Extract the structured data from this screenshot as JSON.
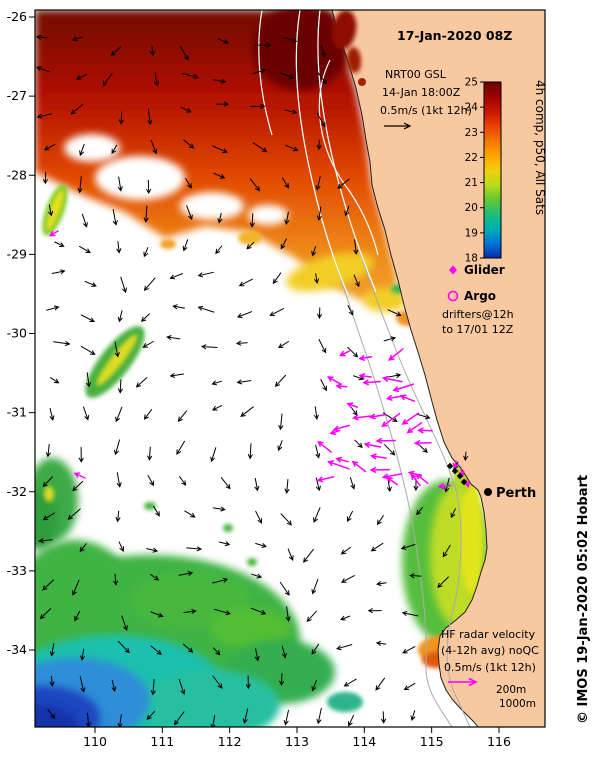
{
  "map": {
    "title": "17-Jan-2020 08Z",
    "product": {
      "name": "NRT00 GSL",
      "valid": "14-Jan 18:00Z",
      "scale": "0.5m/s (1kt 12h)"
    },
    "colorbar": {
      "label": "4h comp, p50, All Sats",
      "ticks": [
        "25",
        "24",
        "23",
        "22",
        "21",
        "20",
        "19",
        "18"
      ],
      "stops": [
        "#6E0000",
        "#9E0400",
        "#C81600",
        "#E84200",
        "#F57600",
        "#FDA400",
        "#F2CE0C",
        "#BCDC1A",
        "#64C832",
        "#1EBE78",
        "#00B0B4",
        "#0076D8",
        "#0A2AAE"
      ]
    },
    "legend": {
      "glider": "Glider",
      "argo": "Argo",
      "drifters1": "drifters@12h",
      "drifters2": "to 17/01 12Z"
    },
    "hf": {
      "l1": "HF radar velocity",
      "l2": "(4-12h avg) noQC",
      "l3": "0.5m/s (1kt 12h)"
    },
    "contours": {
      "c200": "200m",
      "c1000": "1000m"
    },
    "city": "Perth",
    "credit": "© IMOS 19-Jan-2020 05:02 Hobart",
    "axes": {
      "xticks": [
        "110",
        "111",
        "112",
        "113",
        "114",
        "115",
        "116"
      ],
      "yticks": [
        "-26",
        "-27",
        "-28",
        "-29",
        "-30",
        "-31",
        "-32",
        "-33",
        "-34"
      ],
      "lon_range": [
        109.1,
        116.7
      ],
      "lat_range": [
        -35.0,
        -25.9
      ]
    },
    "colors": {
      "land": "#F8C8A0",
      "drifter": "#FF00FF",
      "vectors": "#000000",
      "contour_gray": "#AAAAAA",
      "contour_white": "#FFFFFF"
    }
  }
}
